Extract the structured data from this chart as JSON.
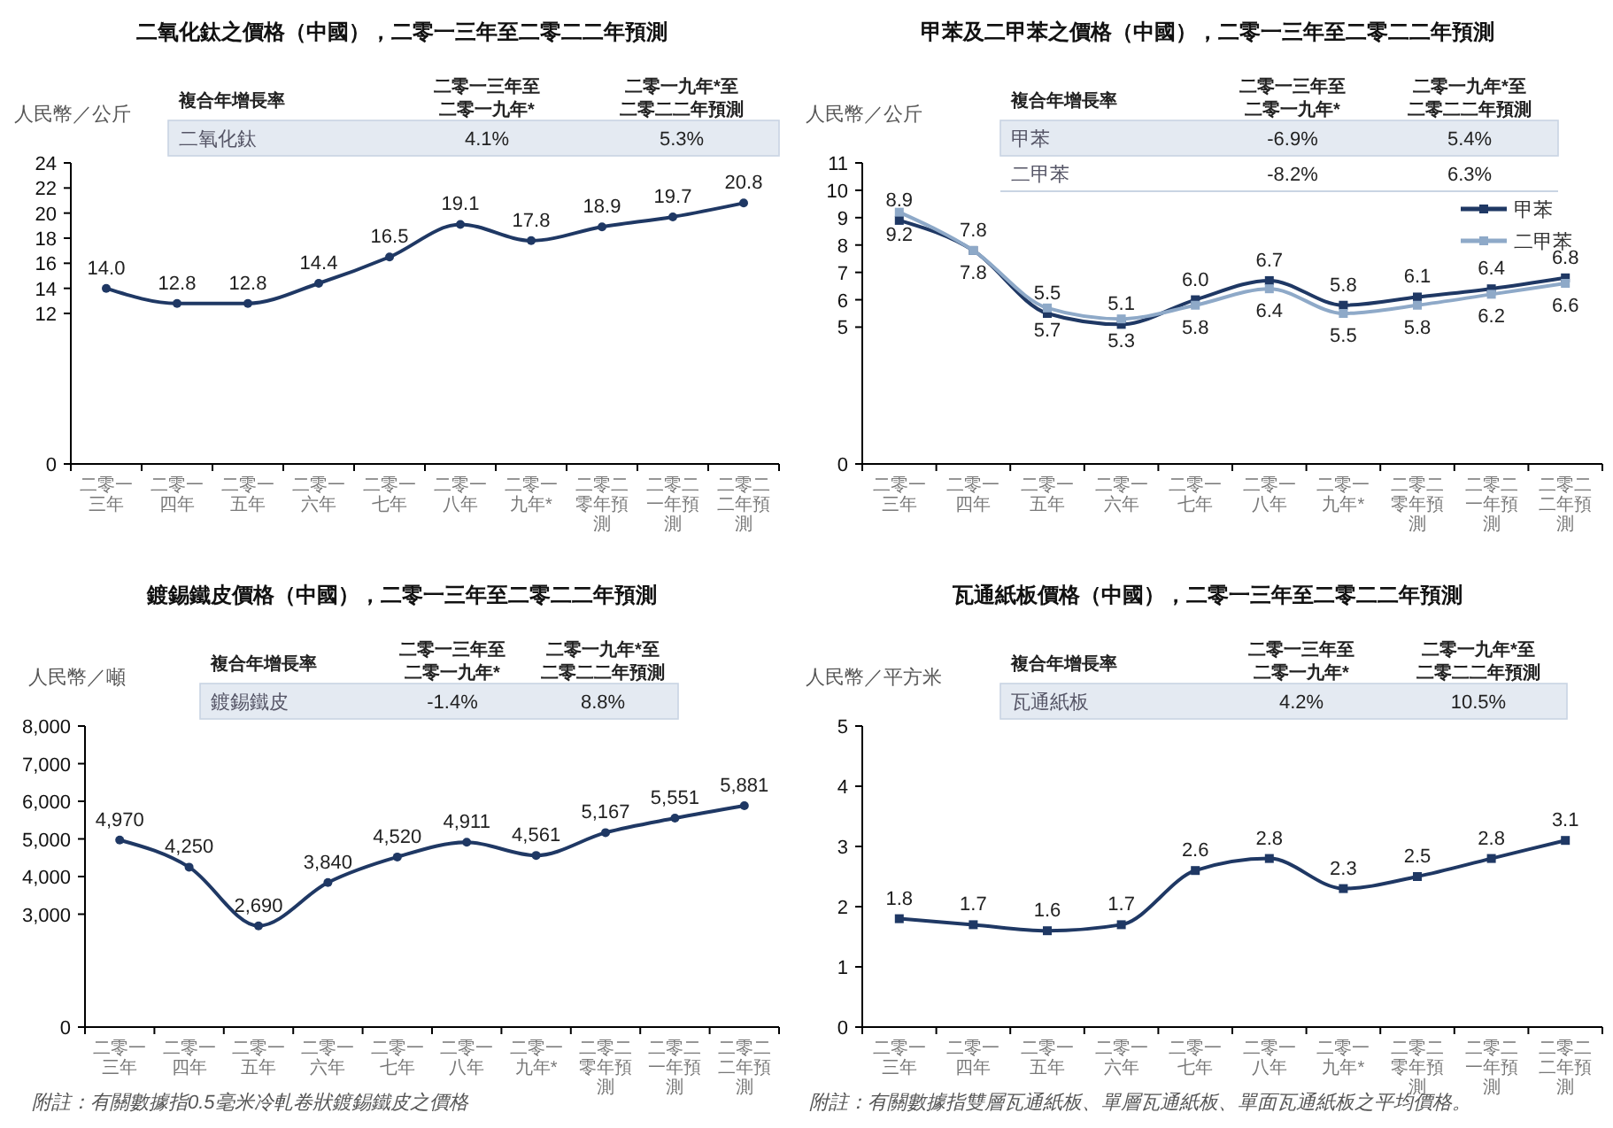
{
  "chart_data": [
    {
      "type": "line",
      "title": "二氧化鈦之價格（中國），二零一三年至二零二二年預測",
      "ylabel": "人民幣／公斤",
      "categories": [
        "二零一三年",
        "二零一四年",
        "二零一五年",
        "二零一六年",
        "二零一七年",
        "二零一八年",
        "二零一九年*",
        "二零二零年預測",
        "二零二一年預測",
        "二零二二年預測"
      ],
      "series": [
        {
          "color": "#1f3864",
          "values": [
            14.0,
            12.8,
            12.8,
            14.4,
            16.5,
            19.1,
            17.8,
            18.9,
            19.7,
            20.8
          ],
          "value_labels": [
            "14.0",
            "12.8",
            "12.8",
            "14.4",
            "16.5",
            "19.1",
            "17.8",
            "18.9",
            "19.7",
            "20.8"
          ]
        }
      ],
      "ylim": [
        0,
        24
      ],
      "yticks": [
        0,
        12,
        14,
        16,
        18,
        20,
        22,
        24
      ],
      "marker": "circle",
      "line_style": "solid",
      "legend": false,
      "annotations": [
        "複合年增長率",
        "二零一三年至二零一九年*",
        "二零一九年*至二零二二年預測",
        "二氧化鈦",
        "4.1%",
        "5.3%"
      ]
    },
    {
      "type": "line",
      "title": "甲苯及二甲苯之價格（中國），二零一三年至二零二二年預測",
      "ylabel": "人民幣／公斤",
      "categories": [
        "二零一三年",
        "二零一四年",
        "二零一五年",
        "二零一六年",
        "二零一七年",
        "二零一八年",
        "二零一九年*",
        "二零二零年預測",
        "二零二一年預測",
        "二零二二年預測"
      ],
      "series": [
        {
          "name": "甲苯",
          "color": "#1f3864",
          "values": [
            8.9,
            7.8,
            5.5,
            5.1,
            6.0,
            6.7,
            5.8,
            6.1,
            6.4,
            6.8
          ],
          "value_labels": [
            "8.9",
            "7.8",
            "5.5",
            "5.1",
            "6.0",
            "6.7",
            "5.8",
            "6.1",
            "6.4",
            "6.8"
          ]
        },
        {
          "name": "二甲苯",
          "color": "#8ea9c8",
          "values": [
            9.2,
            7.8,
            5.7,
            5.3,
            5.8,
            6.4,
            5.5,
            5.8,
            6.2,
            6.6
          ],
          "value_labels": [
            "9.2",
            "7.8",
            "5.7",
            "5.3",
            "5.8",
            "6.4",
            "5.5",
            "5.8",
            "6.2",
            "6.6"
          ]
        }
      ],
      "ylim": [
        0,
        11
      ],
      "yticks": [
        0,
        5,
        6,
        7,
        8,
        9,
        10,
        11
      ],
      "marker": "square",
      "line_style": "solid",
      "legend": "right",
      "annotations": [
        "複合年增長率",
        "二零一三年至二零一九年*",
        "二零一九年*至二零二二年預測",
        "甲苯",
        "-6.9%",
        "5.4%",
        "二甲苯",
        "-8.2%",
        "6.3%"
      ]
    },
    {
      "type": "line",
      "title": "鍍錫鐵皮價格（中國），二零一三年至二零二二年預測",
      "ylabel": "人民幣／噸",
      "categories": [
        "二零一三年",
        "二零一四年",
        "二零一五年",
        "二零一六年",
        "二零一七年",
        "二零一八年",
        "二零一九年*",
        "二零二零年預測",
        "二零二一年預測",
        "二零二二年預測"
      ],
      "series": [
        {
          "color": "#1f3864",
          "values": [
            4970,
            4250,
            2690,
            3840,
            4520,
            4911,
            4561,
            5167,
            5551,
            5881
          ],
          "value_labels": [
            "4,970",
            "4,250",
            "2,690",
            "3,840",
            "4,520",
            "4,911",
            "4,561",
            "5,167",
            "5,551",
            "5,881"
          ]
        }
      ],
      "ylim": [
        0,
        8000
      ],
      "yticks": [
        0,
        {
          "value": 3000,
          "label": "3,000"
        },
        {
          "value": 4000,
          "label": "4,000"
        },
        {
          "value": 5000,
          "label": "5,000"
        },
        {
          "value": 6000,
          "label": "6,000"
        },
        {
          "value": 7000,
          "label": "7,000"
        },
        {
          "value": 8000,
          "label": "8,000"
        }
      ],
      "marker": "circle",
      "line_style": "solid",
      "legend": false,
      "annotations": [
        "複合年增長率",
        "二零一三年至二零一九年*",
        "二零一九年*至二零二二年預測",
        "鍍錫鐵皮",
        "-1.4%",
        "8.8%",
        "附註：有關數據指0.5毫米冷軋卷狀鍍錫鐵皮之價格"
      ]
    },
    {
      "type": "line",
      "title": "瓦通紙板價格（中國），二零一三年至二零二二年預測",
      "ylabel": "人民幣／平方米",
      "categories": [
        "二零一三年",
        "二零一四年",
        "二零一五年",
        "二零一六年",
        "二零一七年",
        "二零一八年",
        "二零一九年*",
        "二零二零年預測",
        "二零二一年預測",
        "二零二二年預測"
      ],
      "series": [
        {
          "color": "#1f3864",
          "values": [
            1.8,
            1.7,
            1.6,
            1.7,
            2.6,
            2.8,
            2.3,
            2.5,
            2.8,
            3.1
          ],
          "value_labels": [
            "1.8",
            "1.7",
            "1.6",
            "1.7",
            "2.6",
            "2.8",
            "2.3",
            "2.5",
            "2.8",
            "3.1"
          ]
        }
      ],
      "ylim": [
        0,
        5
      ],
      "yticks": [
        0,
        1,
        2,
        3,
        4,
        5
      ],
      "marker": "square",
      "line_style": "solid",
      "legend": false,
      "annotations": [
        "複合年增長率",
        "二零一三年至二零一九年*",
        "二零一九年*至二零二二年預測",
        "瓦通紙板",
        "4.2%",
        "10.5%",
        "附註：有關數據指雙層瓦通紙板、單層瓦通紙板、單面瓦通紙板之平均價格。"
      ]
    }
  ]
}
